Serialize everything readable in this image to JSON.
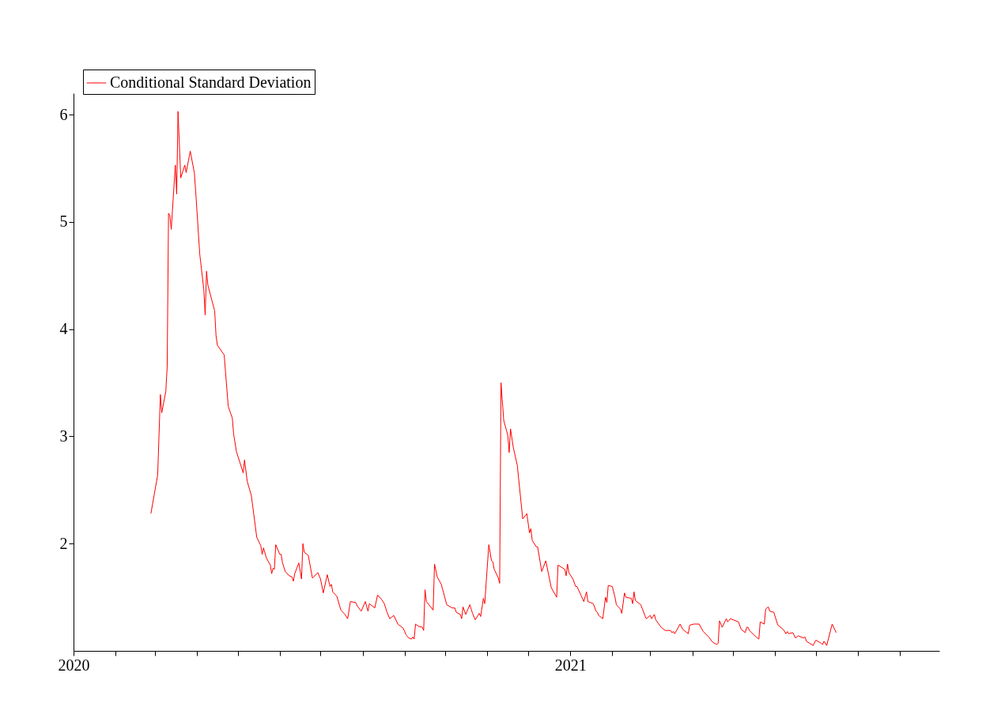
{
  "chart_data": {
    "type": "line",
    "xlim": [
      "2020-01-01",
      "2021-09-30"
    ],
    "xticks": [
      "2020",
      {
        "value": "2020-02",
        "label": null
      },
      {
        "value": "2020-03",
        "label": null
      },
      {
        "value": "2020-04",
        "label": null
      },
      {
        "value": "2020-05",
        "label": null
      },
      {
        "value": "2020-06",
        "label": null
      },
      {
        "value": "2020-07",
        "label": null
      },
      {
        "value": "2020-08",
        "label": null
      },
      {
        "value": "2020-09",
        "label": null
      },
      {
        "value": "2020-10",
        "label": null
      },
      {
        "value": "2020-11",
        "label": null
      },
      {
        "value": "2020-12",
        "label": null
      },
      "2021",
      {
        "value": "2021-02",
        "label": null
      },
      {
        "value": "2021-03",
        "label": null
      },
      {
        "value": "2021-04",
        "label": null
      },
      {
        "value": "2021-05",
        "label": null
      },
      {
        "value": "2021-06",
        "label": null
      },
      {
        "value": "2021-07",
        "label": null
      },
      {
        "value": "2021-08",
        "label": null
      },
      {
        "value": "2021-09",
        "label": null
      }
    ],
    "ylim": [
      1.0,
      6.2
    ],
    "yticks": [
      2,
      3,
      4,
      5,
      6
    ],
    "grid": false,
    "legend": "top left",
    "marker": "none",
    "line_style": "solid",
    "x": [
      "2020-02-27",
      "2020-03-03",
      "2020-03-05",
      "2020-03-06",
      "2020-03-09",
      "2020-03-10",
      "2020-03-11",
      "2020-03-12",
      "2020-03-13",
      "2020-03-16",
      "2020-03-17",
      "2020-03-18",
      "2020-03-20",
      "2020-03-23",
      "2020-03-24",
      "2020-03-27",
      "2020-03-30",
      "2020-03-31",
      "2020-04-03",
      "2020-04-06",
      "2020-04-07",
      "2020-04-08",
      "2020-04-09",
      "2020-04-14",
      "2020-04-15",
      "2020-04-16",
      "2020-04-21",
      "2020-04-24",
      "2020-04-27",
      "2020-04-28",
      "2020-04-30",
      "2020-05-05",
      "2020-05-06",
      "2020-05-08",
      "2020-05-11",
      "2020-05-15",
      "2020-05-18",
      "2020-05-19",
      "2020-05-20",
      "2020-05-22",
      "2020-05-25",
      "2020-05-26",
      "2020-05-27",
      "2020-05-28",
      "2020-05-29",
      "2020-06-01",
      "2020-06-02",
      "2020-06-03",
      "2020-06-05",
      "2020-06-08",
      "2020-06-10",
      "2020-06-11",
      "2020-06-12",
      "2020-06-15",
      "2020-06-17",
      "2020-06-18",
      "2020-06-19",
      "2020-06-22",
      "2020-06-25",
      "2020-06-26",
      "2020-06-29",
      "2020-07-01",
      "2020-07-03",
      "2020-07-06",
      "2020-07-08",
      "2020-07-09",
      "2020-07-10",
      "2020-07-13",
      "2020-07-16",
      "2020-07-19",
      "2020-07-21",
      "2020-07-23",
      "2020-07-27",
      "2020-07-28",
      "2020-07-31",
      "2020-08-03",
      "2020-08-05",
      "2020-08-06",
      "2020-08-10",
      "2020-08-12",
      "2020-08-15",
      "2020-08-17",
      "2020-08-19",
      "2020-08-21",
      "2020-08-24",
      "2020-08-27",
      "2020-08-31",
      "2020-09-02",
      "2020-09-04",
      "2020-09-06",
      "2020-09-07",
      "2020-09-08",
      "2020-09-09",
      "2020-09-11",
      "2020-09-14",
      "2020-09-15",
      "2020-09-16",
      "2020-09-17",
      "2020-09-22",
      "2020-09-23",
      "2020-09-25",
      "2020-09-28",
      "2020-10-02",
      "2020-10-06",
      "2020-10-08",
      "2020-10-09",
      "2020-10-12",
      "2020-10-13",
      "2020-10-14",
      "2020-10-16",
      "2020-10-19",
      "2020-10-21",
      "2020-10-23",
      "2020-10-26",
      "2020-10-27",
      "2020-10-29",
      "2020-10-30",
      "2020-11-02",
      "2020-11-04",
      "2020-11-05",
      "2020-11-06",
      "2020-11-09",
      "2020-11-10",
      "2020-11-11",
      "2020-11-13",
      "2020-11-16",
      "2020-11-17",
      "2020-11-18",
      "2020-11-20",
      "2020-11-23",
      "2020-11-27",
      "2020-11-30",
      "2020-12-02",
      "2020-12-03",
      "2020-12-04",
      "2020-12-07",
      "2020-12-08",
      "2020-12-11",
      "2020-12-14",
      "2020-12-18",
      "2020-12-22",
      "2020-12-23",
      "2020-12-28",
      "2020-12-29",
      "2020-12-30",
      "2020-12-31",
      "2021-01-03",
      "2021-01-05",
      "2021-01-06",
      "2021-01-11",
      "2021-01-13",
      "2021-01-14",
      "2021-01-18",
      "2021-01-20",
      "2021-01-21",
      "2021-01-22",
      "2021-01-25",
      "2021-01-27",
      "2021-01-28",
      "2021-01-29",
      "2021-02-01",
      "2021-02-03",
      "2021-02-04",
      "2021-02-07",
      "2021-02-08",
      "2021-02-10",
      "2021-02-11",
      "2021-02-15",
      "2021-02-16",
      "2021-02-17",
      "2021-02-18",
      "2021-02-22",
      "2021-02-25",
      "2021-02-26",
      "2021-03-01",
      "2021-03-02",
      "2021-03-04",
      "2021-03-05",
      "2021-03-09",
      "2021-03-12",
      "2021-03-16",
      "2021-03-17",
      "2021-03-18",
      "2021-03-19",
      "2021-03-23",
      "2021-03-25",
      "2021-03-29",
      "2021-03-30",
      "2021-04-02",
      "2021-04-06",
      "2021-04-09",
      "2021-04-13",
      "2021-04-16",
      "2021-04-19",
      "2021-04-20",
      "2021-04-21",
      "2021-04-23",
      "2021-04-26",
      "2021-04-27",
      "2021-04-29",
      "2021-05-05",
      "2021-05-07",
      "2021-05-10",
      "2021-05-11",
      "2021-05-12",
      "2021-05-13",
      "2021-05-18",
      "2021-05-20",
      "2021-05-21",
      "2021-05-24",
      "2021-05-25",
      "2021-05-27",
      "2021-05-28",
      "2021-05-31",
      "2021-06-03",
      "2021-06-07",
      "2021-06-09",
      "2021-06-10",
      "2021-06-11",
      "2021-06-14",
      "2021-06-16",
      "2021-06-18",
      "2021-06-22",
      "2021-06-23",
      "2021-06-24",
      "2021-06-29",
      "2021-07-01",
      "2021-07-05",
      "2021-07-06",
      "2021-07-07",
      "2021-07-09",
      "2021-07-13",
      "2021-07-16"
    ],
    "series": [
      {
        "name": "Conditional Standard Deviation",
        "color": "#ff0000",
        "values": [
          2.28,
          2.64,
          3.39,
          3.22,
          3.42,
          3.65,
          5.08,
          5.06,
          4.93,
          5.53,
          5.26,
          6.03,
          5.41,
          5.53,
          5.46,
          5.66,
          5.46,
          5.29,
          4.7,
          4.37,
          4.13,
          4.54,
          4.41,
          4.17,
          3.94,
          3.85,
          3.76,
          3.28,
          3.17,
          3.02,
          2.86,
          2.66,
          2.78,
          2.58,
          2.45,
          2.06,
          1.98,
          1.9,
          1.96,
          1.87,
          1.8,
          1.72,
          1.77,
          1.76,
          1.99,
          1.9,
          1.9,
          1.82,
          1.74,
          1.7,
          1.69,
          1.65,
          1.72,
          1.82,
          1.67,
          2.0,
          1.92,
          1.89,
          1.68,
          1.69,
          1.73,
          1.67,
          1.54,
          1.71,
          1.6,
          1.62,
          1.55,
          1.51,
          1.38,
          1.34,
          1.3,
          1.46,
          1.45,
          1.42,
          1.37,
          1.46,
          1.37,
          1.44,
          1.4,
          1.52,
          1.48,
          1.44,
          1.36,
          1.3,
          1.33,
          1.25,
          1.21,
          1.15,
          1.12,
          1.11,
          1.13,
          1.11,
          1.25,
          1.23,
          1.22,
          1.19,
          1.57,
          1.46,
          1.38,
          1.81,
          1.69,
          1.62,
          1.43,
          1.4,
          1.4,
          1.36,
          1.34,
          1.3,
          1.41,
          1.34,
          1.43,
          1.35,
          1.29,
          1.35,
          1.32,
          1.49,
          1.44,
          1.99,
          1.84,
          1.83,
          1.76,
          1.68,
          1.63,
          3.5,
          3.15,
          3.01,
          2.85,
          3.07,
          2.9,
          2.73,
          2.23,
          2.28,
          2.1,
          2.14,
          2.03,
          1.97,
          1.97,
          1.74,
          1.84,
          1.59,
          1.5,
          1.8,
          1.76,
          1.7,
          1.81,
          1.73,
          1.67,
          1.6,
          1.6,
          1.46,
          1.55,
          1.46,
          1.44,
          1.37,
          1.36,
          1.33,
          1.3,
          1.5,
          1.45,
          1.61,
          1.6,
          1.5,
          1.43,
          1.39,
          1.35,
          1.54,
          1.5,
          1.49,
          1.44,
          1.55,
          1.47,
          1.43,
          1.33,
          1.3,
          1.33,
          1.3,
          1.34,
          1.29,
          1.22,
          1.19,
          1.19,
          1.17,
          1.18,
          1.16,
          1.25,
          1.2,
          1.16,
          1.24,
          1.25,
          1.25,
          1.18,
          1.13,
          1.08,
          1.06,
          1.07,
          1.28,
          1.22,
          1.3,
          1.27,
          1.3,
          1.27,
          1.2,
          1.17,
          1.22,
          1.22,
          1.19,
          1.13,
          1.11,
          1.27,
          1.25,
          1.39,
          1.41,
          1.37,
          1.36,
          1.24,
          1.2,
          1.16,
          1.18,
          1.16,
          1.17,
          1.12,
          1.14,
          1.12,
          1.13,
          1.09,
          1.05,
          1.1,
          1.07,
          1.06,
          1.09,
          1.05,
          1.25,
          1.17
        ]
      }
    ]
  }
}
